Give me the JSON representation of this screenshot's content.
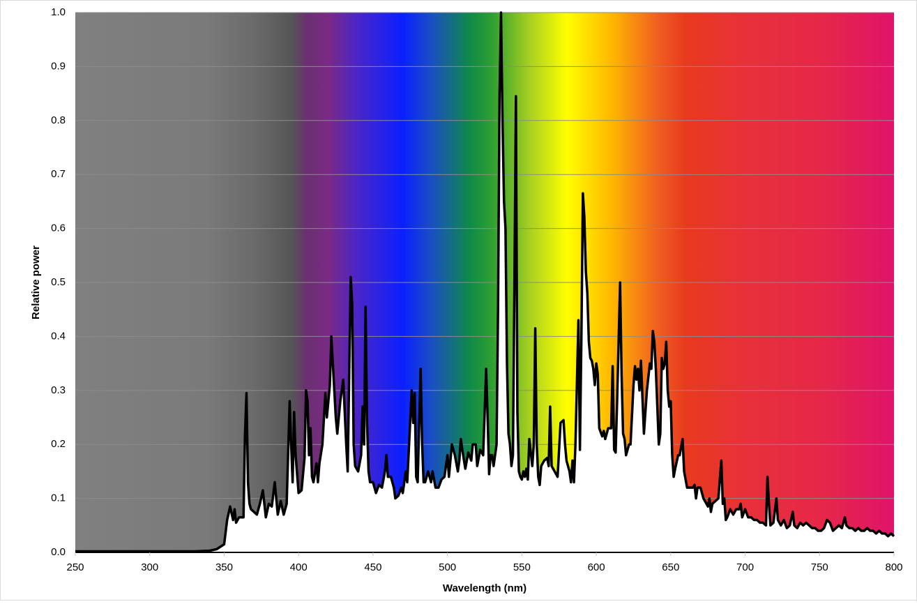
{
  "chart_data": {
    "type": "area",
    "xlabel": "Wavelength (nm)",
    "ylabel": "Relative power",
    "grid": true,
    "xlim": [
      250,
      800
    ],
    "xticks": [
      250,
      300,
      350,
      400,
      450,
      500,
      550,
      600,
      650,
      700,
      750,
      800
    ],
    "ylim": [
      0,
      1
    ],
    "yticks": [
      {
        "value": 0,
        "label": "0.0"
      },
      0.1,
      0.2,
      0.3,
      0.4,
      0.5,
      0.6,
      0.7,
      0.8,
      0.9,
      {
        "value": 1,
        "label": "1.0"
      }
    ],
    "x": [
      250,
      300,
      330,
      340,
      345,
      350,
      352,
      354,
      356,
      357,
      358,
      360,
      363,
      364,
      365,
      366,
      367,
      368,
      370,
      372,
      374,
      376,
      377,
      378,
      380,
      382,
      384,
      386,
      388,
      390,
      392,
      394,
      395,
      396,
      397,
      398,
      400,
      402,
      404,
      405,
      406,
      407,
      408,
      409,
      410,
      412,
      413,
      414,
      416,
      418,
      419,
      421,
      422,
      424,
      425,
      426,
      428,
      430,
      432,
      433,
      435,
      436,
      437,
      438,
      440,
      442,
      443,
      444,
      445,
      446,
      447,
      448,
      450,
      452,
      454,
      456,
      458,
      459,
      460,
      462,
      464,
      465,
      467,
      469,
      470,
      472,
      473,
      476,
      477,
      478,
      479,
      480,
      482,
      483,
      484,
      485,
      487,
      489,
      490,
      492,
      494,
      496,
      498,
      500,
      501,
      503,
      505,
      507,
      508,
      509,
      510,
      512,
      514,
      516,
      517,
      519,
      520,
      522,
      524,
      526,
      527,
      528,
      529,
      530,
      531,
      533,
      534,
      535,
      536,
      537,
      538,
      539,
      540,
      541,
      542,
      543,
      544,
      545,
      546,
      547,
      548,
      549,
      550,
      551,
      552,
      553,
      554,
      555,
      557,
      558,
      559,
      560,
      561,
      562,
      563,
      565,
      567,
      568,
      569,
      570,
      572,
      574,
      576,
      578,
      579,
      580,
      582,
      583,
      584,
      585,
      586,
      588,
      589,
      590,
      591,
      592,
      593,
      594,
      595,
      596,
      597,
      598,
      599,
      600,
      601,
      602,
      604,
      605,
      606,
      608,
      610,
      611,
      612,
      613,
      614,
      616,
      617,
      618,
      619,
      620,
      622,
      623,
      625,
      626,
      627,
      628,
      629,
      630,
      632,
      634,
      636,
      637,
      638,
      639,
      640,
      642,
      643,
      644,
      645,
      646,
      647,
      648,
      649,
      650,
      651,
      652,
      653,
      655,
      656,
      658,
      659,
      661,
      663,
      665,
      666,
      667,
      668,
      670,
      672,
      674,
      675,
      676,
      677,
      678,
      680,
      682,
      684,
      685,
      686,
      687,
      688,
      690,
      692,
      694,
      696,
      697,
      698,
      700,
      702,
      704,
      706,
      708,
      710,
      712,
      714,
      715,
      716,
      717,
      719,
      721,
      722,
      724,
      726,
      728,
      730,
      732,
      733,
      735,
      737,
      739,
      741,
      743,
      745,
      747,
      749,
      751,
      753,
      755,
      757,
      759,
      761,
      763,
      765,
      767,
      768,
      770,
      772,
      774,
      776,
      778,
      780,
      782,
      784,
      786,
      788,
      790,
      792,
      794,
      796,
      798,
      800
    ],
    "series": [
      {
        "color": "#000000",
        "values": [
          0.002,
          0.002,
          0.002,
          0.003,
          0.006,
          0.015,
          0.06,
          0.085,
          0.06,
          0.08,
          0.055,
          0.065,
          0.065,
          0.22,
          0.295,
          0.13,
          0.09,
          0.08,
          0.075,
          0.07,
          0.09,
          0.115,
          0.09,
          0.065,
          0.09,
          0.085,
          0.13,
          0.07,
          0.095,
          0.07,
          0.09,
          0.28,
          0.2,
          0.13,
          0.26,
          0.18,
          0.11,
          0.115,
          0.175,
          0.3,
          0.28,
          0.18,
          0.23,
          0.14,
          0.13,
          0.165,
          0.13,
          0.165,
          0.2,
          0.295,
          0.25,
          0.31,
          0.4,
          0.3,
          0.25,
          0.22,
          0.28,
          0.32,
          0.2,
          0.15,
          0.51,
          0.46,
          0.2,
          0.16,
          0.15,
          0.18,
          0.27,
          0.2,
          0.455,
          0.24,
          0.15,
          0.13,
          0.13,
          0.11,
          0.125,
          0.12,
          0.15,
          0.18,
          0.14,
          0.14,
          0.12,
          0.1,
          0.105,
          0.12,
          0.11,
          0.15,
          0.13,
          0.3,
          0.24,
          0.295,
          0.14,
          0.13,
          0.34,
          0.2,
          0.13,
          0.13,
          0.15,
          0.13,
          0.15,
          0.12,
          0.12,
          0.135,
          0.14,
          0.18,
          0.14,
          0.2,
          0.18,
          0.15,
          0.17,
          0.21,
          0.19,
          0.155,
          0.185,
          0.17,
          0.2,
          0.2,
          0.16,
          0.19,
          0.18,
          0.34,
          0.25,
          0.145,
          0.18,
          0.18,
          0.16,
          0.2,
          0.45,
          0.85,
          1.0,
          0.8,
          0.65,
          0.6,
          0.35,
          0.22,
          0.2,
          0.16,
          0.18,
          0.5,
          0.845,
          0.26,
          0.15,
          0.14,
          0.135,
          0.15,
          0.14,
          0.155,
          0.135,
          0.21,
          0.16,
          0.2,
          0.415,
          0.2,
          0.14,
          0.125,
          0.16,
          0.17,
          0.175,
          0.16,
          0.27,
          0.16,
          0.15,
          0.14,
          0.24,
          0.245,
          0.2,
          0.17,
          0.15,
          0.13,
          0.17,
          0.13,
          0.2,
          0.43,
          0.19,
          0.4,
          0.665,
          0.62,
          0.52,
          0.48,
          0.39,
          0.36,
          0.355,
          0.34,
          0.31,
          0.35,
          0.33,
          0.23,
          0.215,
          0.225,
          0.21,
          0.23,
          0.23,
          0.345,
          0.19,
          0.185,
          0.28,
          0.5,
          0.33,
          0.22,
          0.21,
          0.18,
          0.2,
          0.2,
          0.31,
          0.345,
          0.32,
          0.34,
          0.3,
          0.355,
          0.22,
          0.3,
          0.35,
          0.34,
          0.41,
          0.39,
          0.34,
          0.2,
          0.22,
          0.36,
          0.34,
          0.35,
          0.39,
          0.3,
          0.27,
          0.28,
          0.18,
          0.14,
          0.155,
          0.18,
          0.18,
          0.21,
          0.15,
          0.12,
          0.12,
          0.12,
          0.125,
          0.1,
          0.12,
          0.12,
          0.1,
          0.09,
          0.085,
          0.1,
          0.075,
          0.09,
          0.095,
          0.1,
          0.17,
          0.09,
          0.1,
          0.06,
          0.065,
          0.08,
          0.07,
          0.08,
          0.08,
          0.09,
          0.065,
          0.08,
          0.065,
          0.065,
          0.06,
          0.06,
          0.055,
          0.055,
          0.05,
          0.14,
          0.09,
          0.05,
          0.055,
          0.1,
          0.06,
          0.05,
          0.06,
          0.045,
          0.05,
          0.075,
          0.05,
          0.045,
          0.055,
          0.05,
          0.055,
          0.05,
          0.045,
          0.045,
          0.04,
          0.04,
          0.045,
          0.06,
          0.055,
          0.04,
          0.045,
          0.05,
          0.045,
          0.065,
          0.05,
          0.045,
          0.045,
          0.04,
          0.045,
          0.04,
          0.04,
          0.045,
          0.04,
          0.04,
          0.035,
          0.04,
          0.035,
          0.035,
          0.03,
          0.035,
          0.03
        ]
      }
    ]
  }
}
